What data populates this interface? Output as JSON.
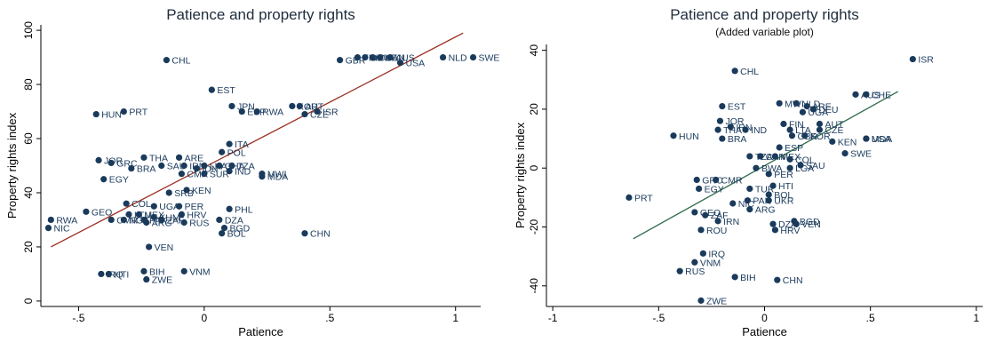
{
  "chart_data": [
    {
      "type": "scatter",
      "title": "Patience and property rights",
      "subtitle": "",
      "xlabel": "Patience",
      "ylabel": "Property rights index",
      "xlim": [
        -0.65,
        1.1
      ],
      "ylim": [
        -2,
        102
      ],
      "xticks": [
        -0.5,
        0,
        0.5,
        1
      ],
      "xticklabels": [
        "-.5",
        "0",
        ".5",
        "1"
      ],
      "yticks": [
        0,
        20,
        40,
        60,
        80,
        100
      ],
      "yticklabels": [
        "0",
        "20",
        "40",
        "60",
        "80",
        "100"
      ],
      "grid": false,
      "point_color": "#1a3a5c",
      "fit_line_color": "#9b2d20",
      "fit_line": {
        "x": [
          -0.61,
          1.03
        ],
        "y": [
          20,
          99
        ]
      },
      "points": [
        {
          "label": "CHL",
          "x": -0.15,
          "y": 89
        },
        {
          "label": "GBR",
          "x": 0.54,
          "y": 89
        },
        {
          "label": "FIN",
          "x": 0.61,
          "y": 90
        },
        {
          "label": "DEU",
          "x": 0.64,
          "y": 90
        },
        {
          "label": "CHE",
          "x": 0.67,
          "y": 90
        },
        {
          "label": "CAN",
          "x": 0.7,
          "y": 90
        },
        {
          "label": "AUS",
          "x": 0.74,
          "y": 90
        },
        {
          "label": "USA",
          "x": 0.78,
          "y": 88
        },
        {
          "label": "NLD",
          "x": 0.95,
          "y": 90
        },
        {
          "label": "SWE",
          "x": 1.07,
          "y": 90
        },
        {
          "label": "EST",
          "x": 0.03,
          "y": 78
        },
        {
          "label": "JPN",
          "x": 0.11,
          "y": 72
        },
        {
          "label": "HUN",
          "x": -0.43,
          "y": 69
        },
        {
          "label": "PRT",
          "x": -0.32,
          "y": 70
        },
        {
          "label": "ESP",
          "x": 0.15,
          "y": 70
        },
        {
          "label": "RWA",
          "x": 0.21,
          "y": 70
        },
        {
          "label": "KOR",
          "x": 0.35,
          "y": 72
        },
        {
          "label": "AUT",
          "x": 0.38,
          "y": 72
        },
        {
          "label": "CZE",
          "x": 0.4,
          "y": 69
        },
        {
          "label": "ISR",
          "x": 0.45,
          "y": 70
        },
        {
          "label": "ITA",
          "x": 0.1,
          "y": 58
        },
        {
          "label": "POL",
          "x": 0.07,
          "y": 55
        },
        {
          "label": "JOR",
          "x": -0.42,
          "y": 52
        },
        {
          "label": "GRC",
          "x": -0.37,
          "y": 51
        },
        {
          "label": "THA",
          "x": -0.24,
          "y": 53
        },
        {
          "label": "BRA",
          "x": -0.29,
          "y": 49
        },
        {
          "label": "ARE",
          "x": -0.1,
          "y": 53
        },
        {
          "label": "SAU",
          "x": -0.17,
          "y": 50
        },
        {
          "label": "IRN",
          "x": -0.08,
          "y": 50
        },
        {
          "label": "IDN",
          "x": -0.03,
          "y": 49
        },
        {
          "label": "LKA",
          "x": 0.0,
          "y": 50
        },
        {
          "label": "GHA",
          "x": 0.06,
          "y": 50
        },
        {
          "label": "TZA",
          "x": 0.11,
          "y": 50
        },
        {
          "label": "CMR",
          "x": -0.09,
          "y": 47
        },
        {
          "label": "SUR",
          "x": 0.0,
          "y": 47
        },
        {
          "label": "IND",
          "x": 0.1,
          "y": 48
        },
        {
          "label": "MWI",
          "x": 0.23,
          "y": 47
        },
        {
          "label": "MDA",
          "x": 0.23,
          "y": 46
        },
        {
          "label": "EGY",
          "x": -0.4,
          "y": 45
        },
        {
          "label": "KEN",
          "x": -0.07,
          "y": 41
        },
        {
          "label": "SRB",
          "x": -0.14,
          "y": 40
        },
        {
          "label": "COL",
          "x": -0.31,
          "y": 36
        },
        {
          "label": "UGA",
          "x": -0.2,
          "y": 35
        },
        {
          "label": "PER",
          "x": -0.1,
          "y": 35
        },
        {
          "label": "PHL",
          "x": 0.1,
          "y": 34
        },
        {
          "label": "GEO",
          "x": -0.47,
          "y": 33
        },
        {
          "label": "LTU",
          "x": -0.3,
          "y": 32
        },
        {
          "label": "MEX",
          "x": -0.26,
          "y": 32
        },
        {
          "label": "KHM",
          "x": -0.2,
          "y": 31
        },
        {
          "label": "HRV",
          "x": -0.09,
          "y": 32
        },
        {
          "label": "RWA",
          "x": -0.61,
          "y": 30
        },
        {
          "label": "NIC",
          "x": -0.62,
          "y": 27
        },
        {
          "label": "CMR",
          "x": -0.37,
          "y": 30
        },
        {
          "label": "NGA",
          "x": -0.32,
          "y": 30
        },
        {
          "label": "PAK",
          "x": -0.24,
          "y": 30
        },
        {
          "label": "ZAF",
          "x": -0.17,
          "y": 30
        },
        {
          "label": "ARG",
          "x": -0.23,
          "y": 29
        },
        {
          "label": "RUS",
          "x": -0.08,
          "y": 29
        },
        {
          "label": "DZA",
          "x": 0.06,
          "y": 30
        },
        {
          "label": "BGD",
          "x": 0.08,
          "y": 27
        },
        {
          "label": "BOL",
          "x": 0.07,
          "y": 25
        },
        {
          "label": "CHN",
          "x": 0.4,
          "y": 25
        },
        {
          "label": "VEN",
          "x": -0.22,
          "y": 20
        },
        {
          "label": "BIH",
          "x": -0.24,
          "y": 11
        },
        {
          "label": "VNM",
          "x": -0.08,
          "y": 11
        },
        {
          "label": "IRQ",
          "x": -0.41,
          "y": 10
        },
        {
          "label": "HTI",
          "x": -0.38,
          "y": 10
        },
        {
          "label": "ZWE",
          "x": -0.23,
          "y": 8
        }
      ]
    },
    {
      "type": "scatter",
      "title": "Patience and property rights",
      "subtitle": "(Added variable plot)",
      "xlabel": "Patience",
      "ylabel": "Property rights index",
      "xlim": [
        -1.03,
        1.03
      ],
      "ylim": [
        -47,
        42
      ],
      "xticks": [
        -1,
        -0.5,
        0,
        0.5,
        1
      ],
      "xticklabels": [
        "-1",
        "-.5",
        "0",
        ".5",
        "1"
      ],
      "yticks": [
        -40,
        -20,
        0,
        20,
        40
      ],
      "yticklabels": [
        "-40",
        "-20",
        "0",
        "20",
        "40"
      ],
      "grid": false,
      "point_color": "#1a3a5c",
      "fit_line_color": "#2e6a4a",
      "fit_line": {
        "x": [
          -0.62,
          0.63
        ],
        "y": [
          -24,
          26
        ]
      },
      "points": [
        {
          "label": "ISR",
          "x": 0.7,
          "y": 37
        },
        {
          "label": "CHL",
          "x": -0.14,
          "y": 33
        },
        {
          "label": "AUS",
          "x": 0.43,
          "y": 25
        },
        {
          "label": "CHE",
          "x": 0.48,
          "y": 25
        },
        {
          "label": "EST",
          "x": -0.2,
          "y": 21
        },
        {
          "label": "MWI",
          "x": 0.07,
          "y": 22
        },
        {
          "label": "NLD",
          "x": 0.15,
          "y": 22
        },
        {
          "label": "ARE",
          "x": 0.2,
          "y": 21
        },
        {
          "label": "DEU",
          "x": 0.23,
          "y": 20
        },
        {
          "label": "UGA",
          "x": 0.18,
          "y": 19
        },
        {
          "label": "JOR",
          "x": -0.21,
          "y": 16
        },
        {
          "label": "IRN",
          "x": -0.16,
          "y": 14
        },
        {
          "label": "IND",
          "x": -0.09,
          "y": 13
        },
        {
          "label": "THA",
          "x": -0.22,
          "y": 13
        },
        {
          "label": "FIN",
          "x": 0.09,
          "y": 15
        },
        {
          "label": "AUT",
          "x": 0.26,
          "y": 15
        },
        {
          "label": "LTA",
          "x": 0.12,
          "y": 13
        },
        {
          "label": "CZE",
          "x": 0.26,
          "y": 13
        },
        {
          "label": "GBR",
          "x": 0.13,
          "y": 11
        },
        {
          "label": "KOR",
          "x": 0.19,
          "y": 11
        },
        {
          "label": "HUN",
          "x": -0.43,
          "y": 11
        },
        {
          "label": "BRA",
          "x": -0.2,
          "y": 10
        },
        {
          "label": "KEN",
          "x": 0.32,
          "y": 9
        },
        {
          "label": "MDA",
          "x": 0.48,
          "y": 10
        },
        {
          "label": "USA",
          "x": 0.48,
          "y": 10
        },
        {
          "label": "ESP",
          "x": 0.07,
          "y": 7
        },
        {
          "label": "SWE",
          "x": 0.38,
          "y": 5
        },
        {
          "label": "TZA",
          "x": -0.07,
          "y": 4
        },
        {
          "label": "CAN",
          "x": -0.02,
          "y": 4
        },
        {
          "label": "MEX",
          "x": 0.05,
          "y": 4
        },
        {
          "label": "COL",
          "x": 0.12,
          "y": 3
        },
        {
          "label": "SAU",
          "x": 0.17,
          "y": 1
        },
        {
          "label": "LGA",
          "x": 0.12,
          "y": 0
        },
        {
          "label": "GRC",
          "x": -0.32,
          "y": -4
        },
        {
          "label": "CMR",
          "x": -0.23,
          "y": -4
        },
        {
          "label": "EGY",
          "x": -0.31,
          "y": -7
        },
        {
          "label": "BWA",
          "x": -0.04,
          "y": 0
        },
        {
          "label": "PER",
          "x": 0.02,
          "y": -2
        },
        {
          "label": "TUR",
          "x": -0.07,
          "y": -7
        },
        {
          "label": "HTI",
          "x": 0.04,
          "y": -6
        },
        {
          "label": "BOL",
          "x": 0.02,
          "y": -9
        },
        {
          "label": "UKR",
          "x": 0.02,
          "y": -11
        },
        {
          "label": "NIC",
          "x": -0.15,
          "y": -12
        },
        {
          "label": "PAK",
          "x": -0.08,
          "y": -11
        },
        {
          "label": "PRT",
          "x": -0.64,
          "y": -10
        },
        {
          "label": "GEO",
          "x": -0.33,
          "y": -15
        },
        {
          "label": "ZAF",
          "x": -0.28,
          "y": -16
        },
        {
          "label": "ARG",
          "x": -0.07,
          "y": -14
        },
        {
          "label": "IRN",
          "x": -0.22,
          "y": -18
        },
        {
          "label": "ROU",
          "x": -0.3,
          "y": -21
        },
        {
          "label": "DZA",
          "x": 0.04,
          "y": -19
        },
        {
          "label": "HRV",
          "x": 0.05,
          "y": -21
        },
        {
          "label": "BGD",
          "x": 0.14,
          "y": -18
        },
        {
          "label": "VEN",
          "x": 0.15,
          "y": -19
        },
        {
          "label": "IRQ",
          "x": -0.29,
          "y": -29
        },
        {
          "label": "VNM",
          "x": -0.33,
          "y": -32
        },
        {
          "label": "RUS",
          "x": -0.4,
          "y": -35
        },
        {
          "label": "BIH",
          "x": -0.14,
          "y": -37
        },
        {
          "label": "CHN",
          "x": 0.06,
          "y": -38
        },
        {
          "label": "ZWE",
          "x": -0.3,
          "y": -45
        }
      ]
    }
  ]
}
